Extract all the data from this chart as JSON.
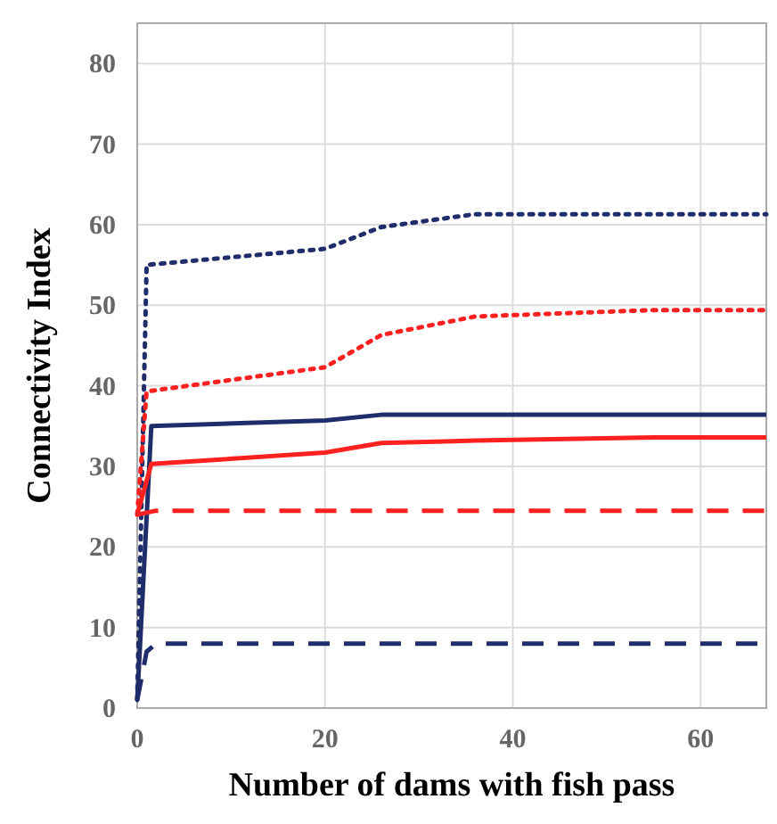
{
  "chart_data": {
    "type": "line",
    "xlabel": "Number of dams with fish pass",
    "ylabel": "Connectivity Index",
    "xlim": [
      0,
      67
    ],
    "ylim": [
      0,
      85
    ],
    "xticks": [
      0,
      20,
      40,
      60
    ],
    "yticks": [
      0,
      10,
      20,
      30,
      40,
      50,
      60,
      70,
      80
    ],
    "grid": true,
    "marker": "none",
    "series": [
      {
        "color": "#1f2d6b",
        "line_style": "dotted",
        "x": [
          0,
          1,
          20,
          26,
          36,
          67
        ],
        "values": [
          1,
          55,
          57,
          59.7,
          61.3,
          61.3
        ]
      },
      {
        "color": "#ff2020",
        "line_style": "dotted",
        "x": [
          0,
          1,
          20,
          26,
          36,
          55,
          67
        ],
        "values": [
          24,
          39.3,
          42.3,
          46.3,
          48.6,
          49.4,
          49.4
        ]
      },
      {
        "color": "#1f2d6b",
        "line_style": "solid",
        "x": [
          0,
          1.5,
          20,
          26,
          67
        ],
        "values": [
          1,
          35,
          35.7,
          36.4,
          36.4
        ]
      },
      {
        "color": "#ff2020",
        "line_style": "solid",
        "x": [
          0,
          1.5,
          20,
          26,
          36,
          55,
          67
        ],
        "values": [
          24,
          30.3,
          31.7,
          32.9,
          33.2,
          33.6,
          33.6
        ]
      },
      {
        "color": "#ff2020",
        "line_style": "dashed",
        "x": [
          0,
          2,
          67
        ],
        "values": [
          24,
          24.5,
          24.5
        ]
      },
      {
        "color": "#1f2d6b",
        "line_style": "dashed",
        "x": [
          0,
          1,
          2,
          67
        ],
        "values": [
          1,
          7,
          8,
          8
        ]
      }
    ]
  }
}
